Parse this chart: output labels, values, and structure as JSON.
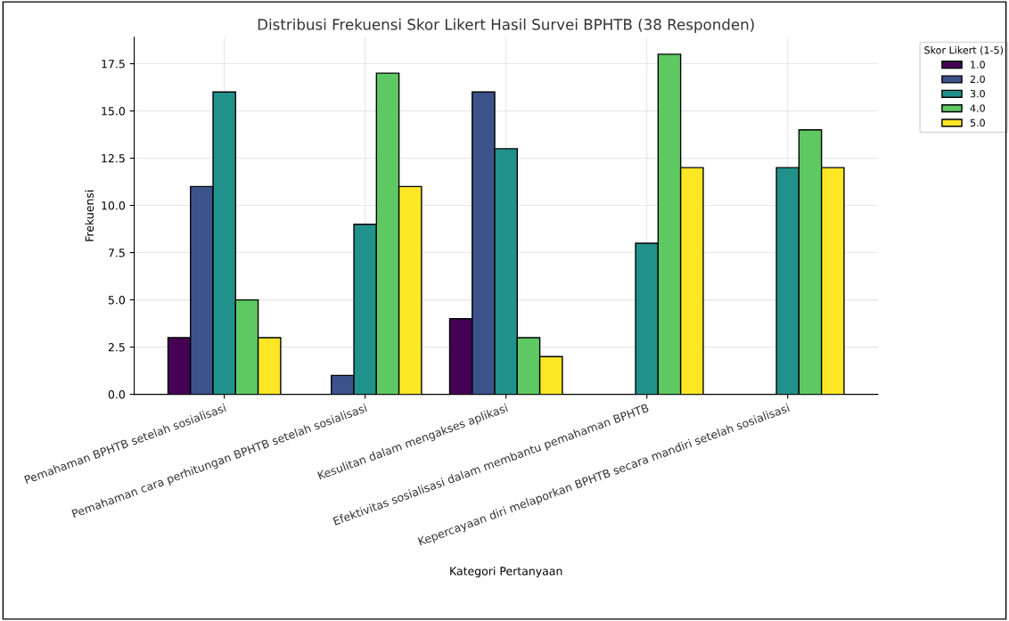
{
  "chart_data": {
    "type": "bar",
    "title": "Distribusi Frekuensi Skor Likert Hasil Survei BPHTB (38 Responden)",
    "xlabel": "Kategori Pertanyaan",
    "ylabel": "Frekuensi",
    "legend_title": "Skor Likert (1-5)",
    "categories": [
      "Pemahaman BPHTB setelah sosialisasi",
      "Pemahaman cara perhitungan BPHTB setelah sosialisasi",
      "Kesulitan dalam mengakses aplikasi",
      "Efektivitas sosialisasi dalam membantu pemahaman BPHTB",
      "Kepercayaan diri melaporkan BPHTB secara mandiri setelah sosialisasi"
    ],
    "series": [
      {
        "name": "1.0",
        "color": "#440154",
        "values": [
          3,
          null,
          4,
          null,
          null
        ]
      },
      {
        "name": "2.0",
        "color": "#3b528b",
        "values": [
          11,
          1,
          16,
          null,
          null
        ]
      },
      {
        "name": "3.0",
        "color": "#21918c",
        "values": [
          16,
          9,
          13,
          8,
          12
        ]
      },
      {
        "name": "4.0",
        "color": "#5ec962",
        "values": [
          5,
          17,
          3,
          18,
          14
        ]
      },
      {
        "name": "5.0",
        "color": "#fde725",
        "values": [
          3,
          11,
          2,
          12,
          12
        ]
      }
    ],
    "ylim": [
      0,
      18.9
    ],
    "yticks": [
      {
        "value": 0,
        "label": "0.0"
      },
      {
        "value": 2.5,
        "label": "2.5"
      },
      {
        "value": 5,
        "label": "5.0"
      },
      {
        "value": 7.5,
        "label": "7.5"
      },
      {
        "value": 10,
        "label": "10.0"
      },
      {
        "value": 12.5,
        "label": "12.5"
      },
      {
        "value": 15,
        "label": "15.0"
      },
      {
        "value": 17.5,
        "label": "17.5"
      }
    ],
    "grid": true,
    "legend": "top right"
  }
}
